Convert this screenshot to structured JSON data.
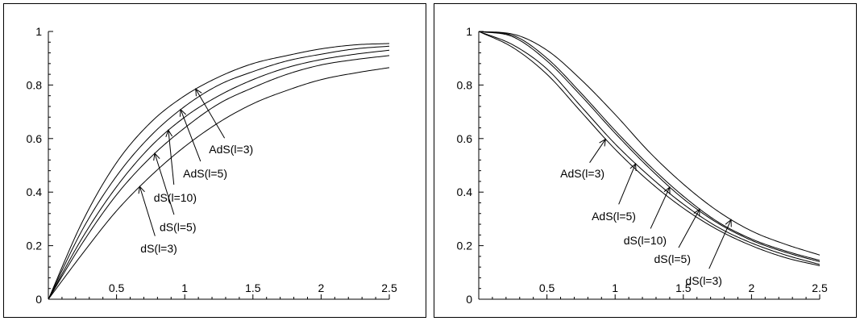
{
  "chart_data": [
    {
      "type": "line",
      "title": "",
      "xlabel": "",
      "ylabel": "",
      "xlim": [
        0,
        2.5
      ],
      "ylim": [
        0,
        1
      ],
      "xticks": [
        {
          "v": 0.5,
          "label": "0.5"
        },
        {
          "v": 1,
          "label": "1"
        },
        {
          "v": 1.5,
          "label": "1.5"
        },
        {
          "v": 2,
          "label": "2"
        },
        {
          "v": 2.5,
          "label": "2.5"
        }
      ],
      "yticks": [
        {
          "v": 0,
          "label": "0"
        },
        {
          "v": 0.2,
          "label": "0.2"
        },
        {
          "v": 0.4,
          "label": "0.4"
        },
        {
          "v": 0.6,
          "label": "0.6"
        },
        {
          "v": 0.8,
          "label": "0.8"
        },
        {
          "v": 1,
          "label": "1"
        }
      ],
      "grid": false,
      "x": [
        0,
        0.25,
        0.5,
        0.75,
        1.0,
        1.25,
        1.5,
        1.75,
        2.0,
        2.25,
        2.5
      ],
      "series": [
        {
          "name": "AdS(l=3)",
          "values": [
            0,
            0.29,
            0.51,
            0.66,
            0.76,
            0.83,
            0.88,
            0.91,
            0.935,
            0.95,
            0.955
          ]
        },
        {
          "name": "AdS(l=5)",
          "values": [
            0,
            0.26,
            0.46,
            0.61,
            0.72,
            0.8,
            0.85,
            0.89,
            0.915,
            0.935,
            0.945
          ]
        },
        {
          "name": "dS(l=10)",
          "values": [
            0,
            0.23,
            0.42,
            0.57,
            0.68,
            0.76,
            0.82,
            0.865,
            0.895,
            0.915,
            0.93
          ]
        },
        {
          "name": "dS(l=5)",
          "values": [
            0,
            0.21,
            0.39,
            0.53,
            0.64,
            0.73,
            0.79,
            0.84,
            0.875,
            0.895,
            0.91
          ]
        },
        {
          "name": "dS(l=3)",
          "values": [
            0,
            0.17,
            0.33,
            0.46,
            0.57,
            0.66,
            0.73,
            0.78,
            0.82,
            0.845,
            0.865
          ]
        }
      ],
      "annotations": [
        {
          "text": "AdS(l=3)",
          "series": 0,
          "x": 1.08,
          "label_x": 1.34,
          "label_y": 0.56
        },
        {
          "text": "AdS(l=5)",
          "series": 1,
          "x": 0.97,
          "label_x": 1.15,
          "label_y": 0.47
        },
        {
          "text": "dS(l=10)",
          "series": 2,
          "x": 0.88,
          "label_x": 0.93,
          "label_y": 0.38
        },
        {
          "text": "dS(l=5)",
          "series": 3,
          "x": 0.78,
          "label_x": 0.95,
          "label_y": 0.27
        },
        {
          "text": "dS(l=3)",
          "series": 4,
          "x": 0.67,
          "label_x": 0.81,
          "label_y": 0.19
        }
      ]
    },
    {
      "type": "line",
      "title": "",
      "xlabel": "",
      "ylabel": "",
      "xlim": [
        0,
        2.5
      ],
      "ylim": [
        0,
        1
      ],
      "xticks": [
        {
          "v": 0.5,
          "label": "0.5"
        },
        {
          "v": 1,
          "label": "1"
        },
        {
          "v": 1.5,
          "label": "1.5"
        },
        {
          "v": 2,
          "label": "2"
        },
        {
          "v": 2.5,
          "label": "2.5"
        }
      ],
      "yticks": [
        {
          "v": 0,
          "label": "0"
        },
        {
          "v": 0.2,
          "label": "0.2"
        },
        {
          "v": 0.4,
          "label": "0.4"
        },
        {
          "v": 0.6,
          "label": "0.6"
        },
        {
          "v": 0.8,
          "label": "0.8"
        },
        {
          "v": 1,
          "label": "1"
        }
      ],
      "grid": false,
      "x": [
        0,
        0.25,
        0.5,
        0.75,
        1.0,
        1.25,
        1.5,
        1.75,
        2.0,
        2.25,
        2.5
      ],
      "series": [
        {
          "name": "AdS(l=3)",
          "values": [
            1.0,
            0.94,
            0.84,
            0.7,
            0.56,
            0.44,
            0.34,
            0.26,
            0.2,
            0.155,
            0.125
          ]
        },
        {
          "name": "AdS(l=5)",
          "values": [
            1.0,
            0.95,
            0.86,
            0.72,
            0.58,
            0.46,
            0.355,
            0.27,
            0.21,
            0.165,
            0.13
          ]
        },
        {
          "name": "dS(l=10)",
          "values": [
            1.0,
            0.98,
            0.89,
            0.76,
            0.62,
            0.49,
            0.375,
            0.285,
            0.22,
            0.175,
            0.14
          ]
        },
        {
          "name": "dS(l=5)",
          "values": [
            1.0,
            0.985,
            0.9,
            0.77,
            0.63,
            0.5,
            0.385,
            0.29,
            0.225,
            0.18,
            0.145
          ]
        },
        {
          "name": "dS(l=3)",
          "values": [
            1.0,
            0.99,
            0.93,
            0.82,
            0.69,
            0.55,
            0.43,
            0.33,
            0.255,
            0.205,
            0.165
          ]
        }
      ],
      "annotations": [
        {
          "text": "AdS(l=3)",
          "series": 0,
          "x": 0.93,
          "label_x": 0.76,
          "label_y": 0.47
        },
        {
          "text": "AdS(l=5)",
          "series": 1,
          "x": 1.15,
          "label_x": 0.99,
          "label_y": 0.31
        },
        {
          "text": "dS(l=10)",
          "series": 2,
          "x": 1.4,
          "label_x": 1.22,
          "label_y": 0.22
        },
        {
          "text": "dS(l=5)",
          "series": 3,
          "x": 1.62,
          "label_x": 1.42,
          "label_y": 0.15
        },
        {
          "text": "dS(l=3)",
          "series": 4,
          "x": 1.85,
          "label_x": 1.65,
          "label_y": 0.07
        }
      ]
    }
  ]
}
